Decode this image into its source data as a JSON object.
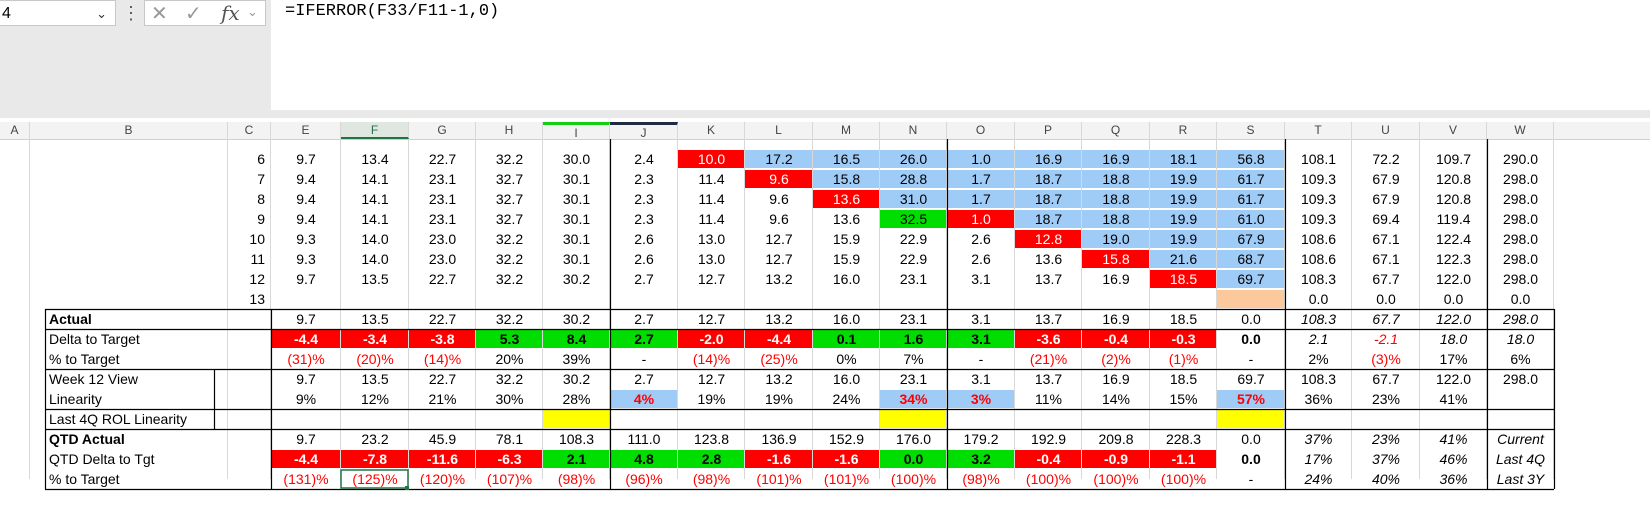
{
  "namebox": {
    "value": "4"
  },
  "formula": {
    "text": "=IFERROR(F33/F11-1,0)"
  },
  "columns": [
    "A",
    "B",
    "C",
    "E",
    "F",
    "G",
    "H",
    "I",
    "J",
    "K",
    "L",
    "M",
    "N",
    "O",
    "P",
    "Q",
    "R",
    "S",
    "T",
    "U",
    "V",
    "W"
  ],
  "rows": [
    {
      "id": "w6",
      "c": "6",
      "label": "",
      "v": [
        "9.7",
        "13.4",
        "22.7",
        "32.2",
        "30.0",
        "2.4",
        "10.0",
        "17.2",
        "16.5",
        "26.0",
        "1.0",
        "16.9",
        "16.9",
        "18.1",
        "56.8",
        "108.1",
        "72.2",
        "109.7",
        "290.0"
      ]
    },
    {
      "id": "w7",
      "c": "7",
      "label": "",
      "v": [
        "9.4",
        "14.1",
        "23.1",
        "32.7",
        "30.1",
        "2.3",
        "11.4",
        "9.6",
        "15.8",
        "28.8",
        "1.7",
        "18.7",
        "18.8",
        "19.9",
        "61.7",
        "109.3",
        "67.9",
        "120.8",
        "298.0"
      ]
    },
    {
      "id": "w8",
      "c": "8",
      "label": "",
      "v": [
        "9.4",
        "14.1",
        "23.1",
        "32.7",
        "30.1",
        "2.3",
        "11.4",
        "9.6",
        "13.6",
        "31.0",
        "1.7",
        "18.7",
        "18.8",
        "19.9",
        "61.7",
        "109.3",
        "67.9",
        "120.8",
        "298.0"
      ]
    },
    {
      "id": "w9",
      "c": "9",
      "label": "",
      "v": [
        "9.4",
        "14.1",
        "23.1",
        "32.7",
        "30.1",
        "2.3",
        "11.4",
        "9.6",
        "13.6",
        "32.5",
        "1.0",
        "18.7",
        "18.8",
        "19.9",
        "61.0",
        "109.3",
        "69.4",
        "119.4",
        "298.0"
      ]
    },
    {
      "id": "w10",
      "c": "10",
      "label": "",
      "v": [
        "9.3",
        "14.0",
        "23.0",
        "32.2",
        "30.1",
        "2.6",
        "13.0",
        "12.7",
        "15.9",
        "22.9",
        "2.6",
        "12.8",
        "19.0",
        "19.9",
        "67.9",
        "108.6",
        "67.1",
        "122.4",
        "298.0"
      ]
    },
    {
      "id": "w11",
      "c": "11",
      "label": "",
      "v": [
        "9.3",
        "14.0",
        "23.0",
        "32.2",
        "30.1",
        "2.6",
        "13.0",
        "12.7",
        "15.9",
        "22.9",
        "2.6",
        "13.6",
        "15.8",
        "21.6",
        "68.7",
        "108.6",
        "67.1",
        "122.3",
        "298.0"
      ]
    },
    {
      "id": "w12",
      "c": "12",
      "label": "",
      "v": [
        "9.7",
        "13.5",
        "22.7",
        "32.2",
        "30.2",
        "2.7",
        "12.7",
        "13.2",
        "16.0",
        "23.1",
        "3.1",
        "13.7",
        "16.9",
        "18.5",
        "69.7",
        "108.3",
        "67.7",
        "122.0",
        "298.0"
      ]
    },
    {
      "id": "w13",
      "c": "13",
      "label": "",
      "v": [
        "",
        "",
        "",
        "",
        "",
        "",
        "",
        "",
        "",
        "",
        "",
        "",
        "",
        "",
        "",
        "0.0",
        "0.0",
        "0.0",
        "0.0"
      ]
    },
    {
      "id": "actual",
      "c": "",
      "label": "Actual",
      "v": [
        "9.7",
        "13.5",
        "22.7",
        "32.2",
        "30.2",
        "2.7",
        "12.7",
        "13.2",
        "16.0",
        "23.1",
        "3.1",
        "13.7",
        "16.9",
        "18.5",
        "0.0",
        "108.3",
        "67.7",
        "122.0",
        "298.0"
      ]
    },
    {
      "id": "delta",
      "c": "",
      "label": "Delta to Target",
      "v": [
        "-4.4",
        "-3.4",
        "-3.8",
        "5.3",
        "8.4",
        "2.7",
        "-2.0",
        "-4.4",
        "0.1",
        "1.6",
        "3.1",
        "-3.6",
        "-0.4",
        "-0.3",
        "0.0",
        "2.1",
        "-2.1",
        "18.0",
        "18.0"
      ]
    },
    {
      "id": "pct",
      "c": "",
      "label": "% to Target",
      "v": [
        "(31)%",
        "(20)%",
        "(14)%",
        "20%",
        "39%",
        "-",
        "(14)%",
        "(25)%",
        "0%",
        "7%",
        "-",
        "(21)%",
        "(2)%",
        "(1)%",
        "-",
        "2%",
        "(3)%",
        "17%",
        "6%"
      ]
    },
    {
      "id": "wk12",
      "c": "",
      "label": "Week 12 View",
      "v": [
        "9.7",
        "13.5",
        "22.7",
        "32.2",
        "30.2",
        "2.7",
        "12.7",
        "13.2",
        "16.0",
        "23.1",
        "3.1",
        "13.7",
        "16.9",
        "18.5",
        "69.7",
        "108.3",
        "67.7",
        "122.0",
        "298.0"
      ]
    },
    {
      "id": "lin",
      "c": "",
      "label": "Linearity",
      "v": [
        "9%",
        "12%",
        "21%",
        "30%",
        "28%",
        "4%",
        "19%",
        "19%",
        "24%",
        "34%",
        "3%",
        "11%",
        "14%",
        "15%",
        "57%",
        "36%",
        "23%",
        "41%",
        ""
      ]
    },
    {
      "id": "last4q",
      "c": "",
      "label": "Last 4Q ROL Linearity",
      "v": [
        "",
        "",
        "",
        "",
        "",
        "",
        "",
        "",
        "",
        "",
        "",
        "",
        "",
        "",
        "",
        "",
        "",
        "",
        ""
      ]
    },
    {
      "id": "qtd",
      "c": "",
      "label": "QTD Actual",
      "v": [
        "9.7",
        "23.2",
        "45.9",
        "78.1",
        "108.3",
        "111.0",
        "123.8",
        "136.9",
        "152.9",
        "176.0",
        "179.2",
        "192.9",
        "209.8",
        "228.3",
        "0.0",
        "37%",
        "23%",
        "41%",
        "Current"
      ]
    },
    {
      "id": "qtddelta",
      "c": "",
      "label": "QTD Delta to Tgt",
      "v": [
        "-4.4",
        "-7.8",
        "-11.6",
        "-6.3",
        "2.1",
        "4.8",
        "2.8",
        "-1.6",
        "-1.6",
        "0.0",
        "3.2",
        "-0.4",
        "-0.9",
        "-1.1",
        "0.0",
        "17%",
        "37%",
        "46%",
        "Last 4Q"
      ]
    },
    {
      "id": "qtdpct",
      "c": "",
      "label": "% to Target",
      "v": [
        "(131)%",
        "(125)%",
        "(120)%",
        "(107)%",
        "(98)%",
        "(96)%",
        "(98)%",
        "(101)%",
        "(101)%",
        "(100)%",
        "(98)%",
        "(100)%",
        "(100)%",
        "(100)%",
        "-",
        "24%",
        "40%",
        "36%",
        "Last 3Y"
      ]
    }
  ],
  "colors": {
    "red": "#ff0000",
    "green": "#00dd00",
    "blue": "#9fcbf7",
    "yellow": "#ffff00",
    "peach": "#fbc99c",
    "gridline": "#d8d8d8",
    "border": "#000000",
    "redtext": "#ff0000"
  }
}
